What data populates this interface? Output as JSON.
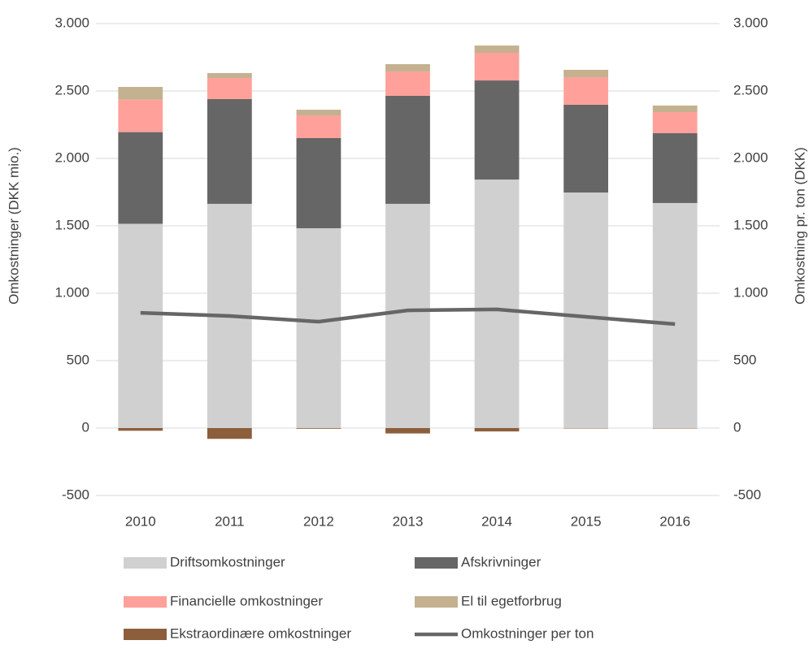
{
  "chart_data": {
    "type": "bar",
    "stacked": true,
    "categories": [
      "2010",
      "2011",
      "2012",
      "2013",
      "2014",
      "2015",
      "2016"
    ],
    "ylabel": "Omkostninger (DKK mio.)",
    "y2label": "Omkostning pr. ton (DKK)",
    "ylim": [
      -500,
      3000
    ],
    "yticks": [
      -500,
      0,
      500,
      {
        "value": 1000,
        "label": "1.000"
      },
      {
        "value": 1500,
        "label": "1.500"
      },
      {
        "value": 2000,
        "label": "2.000"
      },
      {
        "value": 2500,
        "label": "2.500"
      },
      {
        "value": 3000,
        "label": "3.000"
      }
    ],
    "y2lim": [
      -500,
      3000
    ],
    "y2ticks": [
      -500,
      0,
      500,
      {
        "value": 1000,
        "label": "1.000"
      },
      {
        "value": 1500,
        "label": "1.500"
      },
      {
        "value": 2000,
        "label": "2.000"
      },
      {
        "value": 2500,
        "label": "2.500"
      },
      {
        "value": 3000,
        "label": "3.000"
      }
    ],
    "grid": true,
    "series": [
      {
        "name": "Driftsomkostninger",
        "color": "#d0d0d0",
        "values": [
          1515,
          1663,
          1482,
          1663,
          1843,
          1747,
          1669
        ]
      },
      {
        "name": "Afskrivninger",
        "color": "#666666",
        "values": [
          680,
          777,
          669,
          801,
          735,
          651,
          518
        ]
      },
      {
        "name": "Financielle omkostninger",
        "color": "#ffa09a",
        "values": [
          240,
          156,
          168,
          181,
          205,
          204,
          156
        ]
      },
      {
        "name": "El til egetforbrug",
        "color": "#c3b18f",
        "values": [
          95,
          37,
          42,
          54,
          54,
          55,
          49
        ]
      },
      {
        "name": "Ekstraordinære omkostninger",
        "color": "#8c5e3c",
        "values": [
          -20,
          -80,
          -5,
          -40,
          -25,
          -3,
          -3
        ]
      },
      {
        "name": "Omkostninger per ton",
        "color": "#666666",
        "type": "line",
        "axis": "y2",
        "values": [
          855,
          831,
          789,
          873,
          880,
          825,
          771
        ]
      }
    ]
  }
}
